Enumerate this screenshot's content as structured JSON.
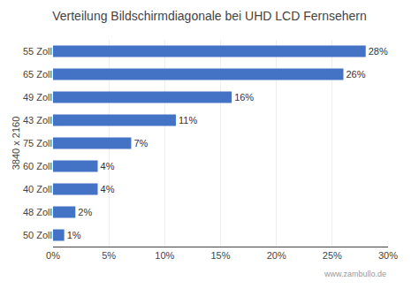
{
  "chart_data": {
    "type": "bar",
    "orientation": "horizontal",
    "title": "Verteilung Bildschirmdiagonale bei UHD LCD Fernsehern",
    "ylabel": "3840 x 2160",
    "categories": [
      "50 Zoll",
      "48 Zoll",
      "40 Zoll",
      "60 Zoll",
      "75 Zoll",
      "43 Zoll",
      "49 Zoll",
      "65 Zoll",
      "55 Zoll"
    ],
    "values": [
      1,
      2,
      4,
      4,
      7,
      11,
      16,
      26,
      28
    ],
    "value_labels": [
      "1%",
      "2%",
      "4%",
      "4%",
      "7%",
      "11%",
      "16%",
      "26%",
      "28%"
    ],
    "data_labels": true,
    "color": "#4472C4",
    "xlim": [
      0,
      30
    ],
    "xticks": [
      {
        "value": 0,
        "label": "0%"
      },
      {
        "value": 5,
        "label": "5%"
      },
      {
        "value": 10,
        "label": "10%"
      },
      {
        "value": 15,
        "label": "15%"
      },
      {
        "value": 20,
        "label": "20%"
      },
      {
        "value": 25,
        "label": "25%"
      },
      {
        "value": 30,
        "label": "30%"
      }
    ],
    "grid": true,
    "annotations": [
      "www.zambullo.de"
    ]
  }
}
